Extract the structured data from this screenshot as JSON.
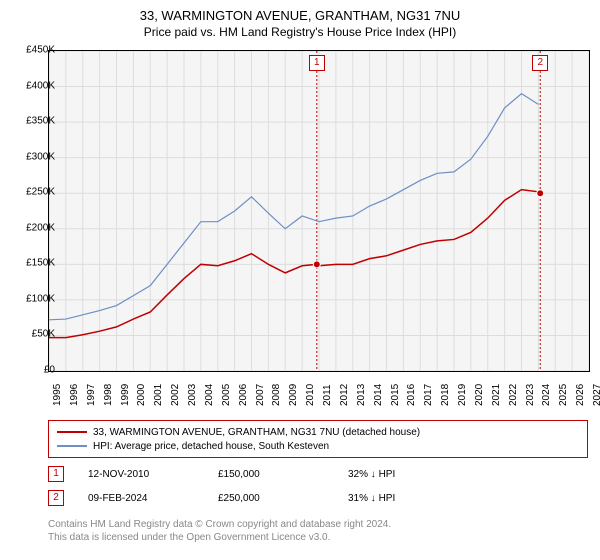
{
  "title": "33, WARMINGTON AVENUE, GRANTHAM, NG31 7NU",
  "subtitle": "Price paid vs. HM Land Registry's House Price Index (HPI)",
  "chart": {
    "type": "line",
    "background_color": "#ffffff",
    "plot_background": "#f5f5f5",
    "grid_color": "#dddddd",
    "border_color": "#000000",
    "y_axis": {
      "min": 0,
      "max": 450000,
      "tick_step": 50000,
      "labels": [
        "£0",
        "£50K",
        "£100K",
        "£150K",
        "£200K",
        "£250K",
        "£300K",
        "£350K",
        "£400K",
        "£450K"
      ],
      "label_fontsize": 10
    },
    "x_axis": {
      "min": 1995,
      "max": 2027,
      "tick_step": 1,
      "labels": [
        "1995",
        "1996",
        "1997",
        "1998",
        "1999",
        "2000",
        "2001",
        "2002",
        "2003",
        "2004",
        "2005",
        "2006",
        "2007",
        "2008",
        "2009",
        "2010",
        "2011",
        "2012",
        "2013",
        "2014",
        "2015",
        "2016",
        "2017",
        "2018",
        "2019",
        "2020",
        "2021",
        "2022",
        "2023",
        "2024",
        "2025",
        "2026",
        "2027"
      ],
      "label_fontsize": 10,
      "rotation": -90
    },
    "series": [
      {
        "name": "property",
        "label": "33, WARMINGTON AVENUE, GRANTHAM, NG31 7NU (detached house)",
        "color": "#c00000",
        "line_width": 1.5,
        "data": [
          [
            1995,
            47000
          ],
          [
            1996,
            47000
          ],
          [
            1997,
            51000
          ],
          [
            1998,
            56000
          ],
          [
            1999,
            62000
          ],
          [
            2000,
            73000
          ],
          [
            2001,
            83000
          ],
          [
            2002,
            107000
          ],
          [
            2003,
            130000
          ],
          [
            2004,
            150000
          ],
          [
            2005,
            148000
          ],
          [
            2006,
            155000
          ],
          [
            2007,
            165000
          ],
          [
            2008,
            150000
          ],
          [
            2009,
            138000
          ],
          [
            2010,
            148000
          ],
          [
            2010.87,
            150000
          ],
          [
            2011,
            148000
          ],
          [
            2012,
            150000
          ],
          [
            2013,
            150000
          ],
          [
            2014,
            158000
          ],
          [
            2015,
            162000
          ],
          [
            2016,
            170000
          ],
          [
            2017,
            178000
          ],
          [
            2018,
            183000
          ],
          [
            2019,
            185000
          ],
          [
            2020,
            195000
          ],
          [
            2021,
            215000
          ],
          [
            2022,
            240000
          ],
          [
            2023,
            255000
          ],
          [
            2024,
            252000
          ],
          [
            2024.11,
            250000
          ]
        ]
      },
      {
        "name": "hpi",
        "label": "HPI: Average price, detached house, South Kesteven",
        "color": "#6d8fc5",
        "line_width": 1.2,
        "data": [
          [
            1995,
            72000
          ],
          [
            1996,
            73000
          ],
          [
            1997,
            79000
          ],
          [
            1998,
            85000
          ],
          [
            1999,
            92000
          ],
          [
            2000,
            106000
          ],
          [
            2001,
            120000
          ],
          [
            2002,
            150000
          ],
          [
            2003,
            180000
          ],
          [
            2004,
            210000
          ],
          [
            2005,
            210000
          ],
          [
            2006,
            225000
          ],
          [
            2007,
            245000
          ],
          [
            2008,
            222000
          ],
          [
            2009,
            200000
          ],
          [
            2010,
            218000
          ],
          [
            2011,
            210000
          ],
          [
            2012,
            215000
          ],
          [
            2013,
            218000
          ],
          [
            2014,
            232000
          ],
          [
            2015,
            242000
          ],
          [
            2016,
            255000
          ],
          [
            2017,
            268000
          ],
          [
            2018,
            278000
          ],
          [
            2019,
            280000
          ],
          [
            2020,
            298000
          ],
          [
            2021,
            330000
          ],
          [
            2022,
            370000
          ],
          [
            2023,
            390000
          ],
          [
            2024,
            375000
          ]
        ]
      }
    ],
    "markers": [
      {
        "num": "1",
        "x": 2010.87,
        "y": 150000,
        "date": "12-NOV-2010",
        "price": "£150,000",
        "delta": "32% ↓ HPI",
        "line_color": "#c00000",
        "line_style": "dotted"
      },
      {
        "num": "2",
        "x": 2024.11,
        "y": 250000,
        "date": "09-FEB-2024",
        "price": "£250,000",
        "delta": "31% ↓ HPI",
        "line_color": "#c00000",
        "line_style": "dotted"
      }
    ]
  },
  "legend": {
    "border_color": "#c00000",
    "items": [
      {
        "color": "#c00000",
        "label": "33, WARMINGTON AVENUE, GRANTHAM, NG31 7NU (detached house)"
      },
      {
        "color": "#6d8fc5",
        "label": "HPI: Average price, detached house, South Kesteven"
      }
    ]
  },
  "attribution": {
    "line1": "Contains HM Land Registry data © Crown copyright and database right 2024.",
    "line2": "This data is licensed under the Open Government Licence v3.0.",
    "color": "#888888"
  }
}
